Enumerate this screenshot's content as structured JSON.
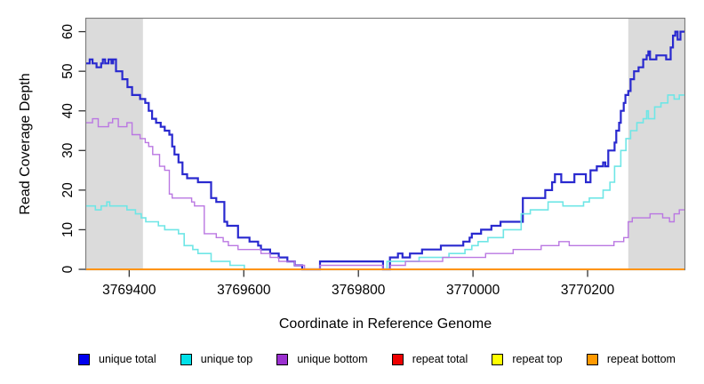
{
  "chart_data": {
    "type": "line",
    "subtype": "step",
    "title": "",
    "xlabel": "Coordinate in Reference Genome",
    "ylabel": "Read Coverage Depth",
    "xlim": [
      3769325,
      3770369
    ],
    "ylim": [
      0,
      63.5
    ],
    "x_ticks": [
      3769400,
      3769600,
      3769800,
      3770000,
      3770200
    ],
    "y_ticks": [
      0,
      10,
      20,
      30,
      40,
      50,
      60
    ],
    "grid": false,
    "legend_position": "bottom",
    "shaded_regions": {
      "color": "#DBDBDB",
      "x_ranges": [
        [
          3769325,
          3769424
        ],
        [
          3770271,
          3770369
        ]
      ]
    },
    "series": [
      {
        "name": "unique total",
        "color": "#2929CF",
        "legend_swatch": "#0000EE",
        "line_width": 2.2,
        "points": [
          [
            3769325,
            52
          ],
          [
            3769331,
            53
          ],
          [
            3769336,
            52
          ],
          [
            3769343,
            51
          ],
          [
            3769351,
            52
          ],
          [
            3769354,
            53
          ],
          [
            3769358,
            52
          ],
          [
            3769364,
            53
          ],
          [
            3769369,
            52
          ],
          [
            3769372,
            53
          ],
          [
            3769377,
            50
          ],
          [
            3769388,
            48
          ],
          [
            3769397,
            46
          ],
          [
            3769405,
            44
          ],
          [
            3769419,
            43
          ],
          [
            3769428,
            42
          ],
          [
            3769434,
            40
          ],
          [
            3769440,
            38
          ],
          [
            3769447,
            37
          ],
          [
            3769455,
            36
          ],
          [
            3769462,
            35
          ],
          [
            3769470,
            34
          ],
          [
            3769475,
            31
          ],
          [
            3769479,
            29
          ],
          [
            3769486,
            27
          ],
          [
            3769493,
            24
          ],
          [
            3769501,
            23
          ],
          [
            3769520,
            22
          ],
          [
            3769543,
            18
          ],
          [
            3769552,
            17
          ],
          [
            3769566,
            12
          ],
          [
            3769571,
            11
          ],
          [
            3769590,
            8
          ],
          [
            3769610,
            7
          ],
          [
            3769625,
            6
          ],
          [
            3769630,
            5
          ],
          [
            3769646,
            4
          ],
          [
            3769661,
            3
          ],
          [
            3769676,
            2
          ],
          [
            3769689,
            1
          ],
          [
            3769702,
            0
          ],
          [
            3769733,
            2
          ],
          [
            3769843,
            0
          ],
          [
            3769855,
            3
          ],
          [
            3769869,
            4
          ],
          [
            3769877,
            3
          ],
          [
            3769890,
            4
          ],
          [
            3769911,
            5
          ],
          [
            3769944,
            6
          ],
          [
            3769983,
            7
          ],
          [
            3769994,
            8
          ],
          [
            3769998,
            9
          ],
          [
            3770014,
            10
          ],
          [
            3770032,
            11
          ],
          [
            3770048,
            12
          ],
          [
            3770087,
            18
          ],
          [
            3770126,
            20
          ],
          [
            3770138,
            22
          ],
          [
            3770143,
            24
          ],
          [
            3770154,
            22
          ],
          [
            3770177,
            24
          ],
          [
            3770197,
            22
          ],
          [
            3770205,
            25
          ],
          [
            3770216,
            26
          ],
          [
            3770227,
            27
          ],
          [
            3770231,
            26
          ],
          [
            3770236,
            30
          ],
          [
            3770247,
            32
          ],
          [
            3770250,
            35
          ],
          [
            3770255,
            37
          ],
          [
            3770258,
            40
          ],
          [
            3770263,
            42
          ],
          [
            3770266,
            44
          ],
          [
            3770271,
            45
          ],
          [
            3770275,
            48
          ],
          [
            3770281,
            50
          ],
          [
            3770289,
            51
          ],
          [
            3770297,
            53
          ],
          [
            3770303,
            54
          ],
          [
            3770306,
            55
          ],
          [
            3770309,
            53
          ],
          [
            3770320,
            54
          ],
          [
            3770337,
            53
          ],
          [
            3770345,
            56
          ],
          [
            3770349,
            59
          ],
          [
            3770353,
            60
          ],
          [
            3770357,
            58
          ],
          [
            3770362,
            60
          ]
        ]
      },
      {
        "name": "unique top",
        "color": "#6FE6E6",
        "legend_swatch": "#00E0E8",
        "line_width": 1.6,
        "points": [
          [
            3769325,
            16
          ],
          [
            3769341,
            15
          ],
          [
            3769351,
            16
          ],
          [
            3769361,
            17
          ],
          [
            3769366,
            16
          ],
          [
            3769396,
            15
          ],
          [
            3769411,
            14
          ],
          [
            3769421,
            13
          ],
          [
            3769429,
            12
          ],
          [
            3769451,
            11
          ],
          [
            3769462,
            10
          ],
          [
            3769486,
            9
          ],
          [
            3769496,
            6
          ],
          [
            3769511,
            5
          ],
          [
            3769520,
            4
          ],
          [
            3769543,
            2
          ],
          [
            3769576,
            1
          ],
          [
            3769601,
            0
          ],
          [
            3769850,
            2
          ],
          [
            3769906,
            3
          ],
          [
            3769958,
            4
          ],
          [
            3769986,
            5
          ],
          [
            3769998,
            6
          ],
          [
            3770009,
            7
          ],
          [
            3770026,
            8
          ],
          [
            3770053,
            10
          ],
          [
            3770084,
            14
          ],
          [
            3770100,
            15
          ],
          [
            3770131,
            17
          ],
          [
            3770157,
            16
          ],
          [
            3770193,
            17
          ],
          [
            3770203,
            18
          ],
          [
            3770227,
            20
          ],
          [
            3770239,
            22
          ],
          [
            3770247,
            26
          ],
          [
            3770258,
            30
          ],
          [
            3770267,
            33
          ],
          [
            3770275,
            35
          ],
          [
            3770286,
            37
          ],
          [
            3770297,
            38
          ],
          [
            3770303,
            40
          ],
          [
            3770306,
            38
          ],
          [
            3770317,
            41
          ],
          [
            3770328,
            42
          ],
          [
            3770340,
            44
          ],
          [
            3770351,
            43
          ],
          [
            3770360,
            44
          ]
        ]
      },
      {
        "name": "unique bottom",
        "color": "#BA77E2",
        "legend_swatch": "#9B30D0",
        "line_width": 1.4,
        "points": [
          [
            3769325,
            37
          ],
          [
            3769336,
            38
          ],
          [
            3769346,
            36
          ],
          [
            3769364,
            37
          ],
          [
            3769371,
            38
          ],
          [
            3769381,
            36
          ],
          [
            3769396,
            37
          ],
          [
            3769405,
            34
          ],
          [
            3769419,
            33
          ],
          [
            3769428,
            32
          ],
          [
            3769434,
            31
          ],
          [
            3769441,
            29
          ],
          [
            3769453,
            26
          ],
          [
            3769462,
            25
          ],
          [
            3769470,
            19
          ],
          [
            3769475,
            18
          ],
          [
            3769509,
            17
          ],
          [
            3769514,
            16
          ],
          [
            3769531,
            9
          ],
          [
            3769552,
            8
          ],
          [
            3769564,
            7
          ],
          [
            3769573,
            6
          ],
          [
            3769590,
            5
          ],
          [
            3769630,
            4
          ],
          [
            3769646,
            3
          ],
          [
            3769661,
            2
          ],
          [
            3769689,
            1
          ],
          [
            3769706,
            0
          ],
          [
            3769733,
            1
          ],
          [
            3769843,
            0
          ],
          [
            3769856,
            1
          ],
          [
            3769882,
            2
          ],
          [
            3769947,
            3
          ],
          [
            3770022,
            4
          ],
          [
            3770070,
            5
          ],
          [
            3770119,
            6
          ],
          [
            3770150,
            7
          ],
          [
            3770168,
            6
          ],
          [
            3770246,
            7
          ],
          [
            3770263,
            8
          ],
          [
            3770271,
            12
          ],
          [
            3770278,
            13
          ],
          [
            3770309,
            14
          ],
          [
            3770331,
            13
          ],
          [
            3770343,
            12
          ],
          [
            3770351,
            14
          ],
          [
            3770360,
            15
          ]
        ]
      },
      {
        "name": "repeat total",
        "color": "#E00000",
        "legend_swatch": "#EE0000",
        "line_width": 1.2,
        "points": [
          [
            3769325,
            0
          ],
          [
            3770369,
            0
          ]
        ]
      },
      {
        "name": "repeat top",
        "color": "#F5F500",
        "legend_swatch": "#FFFF00",
        "line_width": 1.2,
        "points": [
          [
            3769325,
            0
          ],
          [
            3770369,
            0
          ]
        ]
      },
      {
        "name": "repeat bottom",
        "color": "#FF9414",
        "legend_swatch": "#FF9900",
        "line_width": 2,
        "points": [
          [
            3769325,
            0
          ],
          [
            3770369,
            0
          ]
        ]
      }
    ]
  }
}
